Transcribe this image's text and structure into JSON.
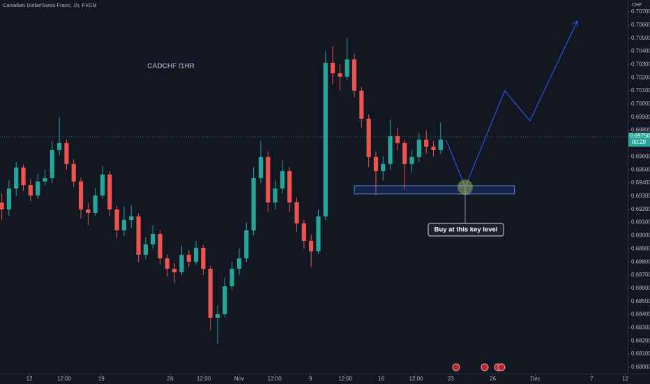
{
  "chart_data": {
    "type": "candlestick",
    "title": "Canadian Dollar/Swiss Franc, 1h, FXCM",
    "annotation": "CADCHF /1HR",
    "callout": "Buy at this key level",
    "y_unit": "CHF",
    "up_color": "#26a69a",
    "down_color": "#ef5350",
    "x": [
      -46,
      -34,
      -22,
      -10,
      2,
      14,
      26,
      38,
      50,
      62,
      74,
      86,
      98,
      110,
      122,
      134,
      146,
      158,
      170,
      182,
      194,
      206,
      218,
      230,
      242,
      254,
      266,
      278,
      290,
      302,
      314,
      326,
      338,
      350,
      362,
      374,
      386,
      398,
      410,
      422,
      434,
      446,
      458,
      470,
      482,
      494,
      506,
      518,
      530,
      542,
      554,
      566,
      578,
      590,
      602,
      614,
      626,
      638,
      650,
      662,
      674,
      686
    ],
    "open": [
      0.6925,
      0.69199,
      0.69358,
      0.69517,
      0.69384,
      0.69305,
      0.69411,
      0.69437,
      0.6965,
      0.69703,
      0.69544,
      0.69411,
      0.69199,
      0.69172,
      0.69305,
      0.69464,
      0.69199,
      0.6904,
      0.69119,
      0.69146,
      0.68854,
      0.68933,
      0.69013,
      0.68827,
      0.68748,
      0.68721,
      0.68854,
      0.68801,
      0.68907,
      0.68748,
      0.68376,
      0.68403,
      0.68615,
      0.68748,
      0.68827,
      0.6904,
      0.69437,
      0.69597,
      0.69252,
      0.69358,
      0.6949,
      0.69252,
      0.69093,
      0.6896,
      0.6888,
      0.69146,
      0.70313,
      0.70233,
      0.70207,
      0.70339,
      0.70101,
      0.69888,
      0.69597,
      0.6949,
      0.69544,
      0.69756,
      0.69703,
      0.69544,
      0.69597,
      0.69729,
      0.69676,
      0.6965
    ],
    "high": [
      0.6932,
      0.6942,
      0.6956,
      0.6954,
      0.6943,
      0.6947,
      0.695,
      0.6972,
      0.699,
      0.6973,
      0.6958,
      0.6944,
      0.6925,
      0.6936,
      0.6953,
      0.6949,
      0.6923,
      0.6922,
      0.6923,
      0.6917,
      0.6899,
      0.6908,
      0.6904,
      0.6886,
      0.6879,
      0.6892,
      0.6889,
      0.6896,
      0.6893,
      0.6877,
      0.6847,
      0.6868,
      0.688,
      0.689,
      0.691,
      0.6952,
      0.6972,
      0.6964,
      0.6942,
      0.6957,
      0.6952,
      0.6929,
      0.6912,
      0.6901,
      0.692,
      0.704,
      0.7044,
      0.703,
      0.705,
      0.7038,
      0.7013,
      0.6992,
      0.6964,
      0.696,
      0.6988,
      0.6982,
      0.6973,
      0.6965,
      0.6978,
      0.698,
      0.6972,
      0.6986
    ],
    "low": [
      0.6912,
      0.6915,
      0.693,
      0.6934,
      0.6926,
      0.6928,
      0.6938,
      0.694,
      0.6961,
      0.695,
      0.6937,
      0.6913,
      0.6908,
      0.6915,
      0.6928,
      0.6915,
      0.6898,
      0.69,
      0.6906,
      0.688,
      0.6882,
      0.689,
      0.6878,
      0.6869,
      0.6864,
      0.687,
      0.6876,
      0.6878,
      0.687,
      0.6828,
      0.6818,
      0.6838,
      0.6859,
      0.687,
      0.688,
      0.69,
      0.694,
      0.6918,
      0.692,
      0.6932,
      0.6918,
      0.6903,
      0.689,
      0.6876,
      0.6886,
      0.6912,
      0.7015,
      0.701,
      0.7018,
      0.7005,
      0.6982,
      0.6952,
      0.6931,
      0.6942,
      0.695,
      0.6965,
      0.6935,
      0.6948,
      0.6956,
      0.6962,
      0.696,
      0.6962
    ],
    "close": [
      0.69199,
      0.69358,
      0.69517,
      0.69384,
      0.69305,
      0.69411,
      0.69437,
      0.6965,
      0.69703,
      0.69544,
      0.69411,
      0.69199,
      0.69172,
      0.69305,
      0.69464,
      0.69199,
      0.6904,
      0.69119,
      0.69146,
      0.68854,
      0.68933,
      0.69013,
      0.68827,
      0.68748,
      0.68721,
      0.68854,
      0.68801,
      0.68907,
      0.68748,
      0.68376,
      0.68403,
      0.68615,
      0.68748,
      0.68827,
      0.6904,
      0.69437,
      0.69597,
      0.69252,
      0.69358,
      0.6949,
      0.69252,
      0.69093,
      0.6896,
      0.6888,
      0.69146,
      0.70313,
      0.70233,
      0.70207,
      0.70339,
      0.70101,
      0.69888,
      0.69597,
      0.6949,
      0.69544,
      0.69756,
      0.69703,
      0.69544,
      0.69597,
      0.69729,
      0.69676,
      0.6965,
      0.69729
    ],
    "current_price": {
      "value": 0.6975,
      "label": "0.69750"
    },
    "countdown": "00:29",
    "zone": {
      "x": [
        542,
        809
      ],
      "y": [
        0.69316,
        0.69379
      ]
    },
    "projection": {
      "x": [
        695,
        727,
        793,
        835,
        914
      ],
      "y": [
        0.69729,
        0.69368,
        0.70101,
        0.69872,
        0.70631
      ]
    },
    "xlim": [
      -49,
      998
    ],
    "ylim": [
      0.67952,
      0.7079
    ],
    "xticks": [
      {
        "value": 0,
        "label": "12"
      },
      {
        "value": 58,
        "label": "12:00"
      },
      {
        "value": 120,
        "label": "19"
      },
      {
        "value": 235,
        "label": "26"
      },
      {
        "value": 291,
        "label": "12:00"
      },
      {
        "value": 350,
        "label": "Nov"
      },
      {
        "value": 409,
        "label": "12:00"
      },
      {
        "value": 469,
        "label": "9"
      },
      {
        "value": 527,
        "label": "12:00"
      },
      {
        "value": 587,
        "label": "16"
      },
      {
        "value": 645,
        "label": "12:00"
      },
      {
        "value": 703,
        "label": "23"
      },
      {
        "value": 773,
        "label": "26"
      },
      {
        "value": 844,
        "label": "Dec"
      },
      {
        "value": 938,
        "label": "7"
      },
      {
        "value": 994,
        "label": "12"
      }
    ],
    "yticks": [
      {
        "value": 0.68,
        "label": "0.68000"
      },
      {
        "value": 0.681,
        "label": "0.68100"
      },
      {
        "value": 0.682,
        "label": "0.68200"
      },
      {
        "value": 0.683,
        "label": "0.68300"
      },
      {
        "value": 0.684,
        "label": "0.68400"
      },
      {
        "value": 0.685,
        "label": "0.68500"
      },
      {
        "value": 0.686,
        "label": "0.68600"
      },
      {
        "value": 0.687,
        "label": "0.68700"
      },
      {
        "value": 0.688,
        "label": "0.68800"
      },
      {
        "value": 0.689,
        "label": "0.68900"
      },
      {
        "value": 0.69,
        "label": "0.69000"
      },
      {
        "value": 0.691,
        "label": "0.69100"
      },
      {
        "value": 0.692,
        "label": "0.69200"
      },
      {
        "value": 0.693,
        "label": "0.69300"
      },
      {
        "value": 0.694,
        "label": "0.69400"
      },
      {
        "value": 0.695,
        "label": "0.69500"
      },
      {
        "value": 0.696,
        "label": "0.69600"
      },
      {
        "value": 0.698,
        "label": "0.69800"
      },
      {
        "value": 0.699,
        "label": "0.69900"
      },
      {
        "value": 0.7,
        "label": "0.70000"
      },
      {
        "value": 0.701,
        "label": "0.70100"
      },
      {
        "value": 0.702,
        "label": "0.70200"
      },
      {
        "value": 0.703,
        "label": "0.70300"
      },
      {
        "value": 0.704,
        "label": "0.70400"
      },
      {
        "value": 0.705,
        "label": "0.70500"
      },
      {
        "value": 0.706,
        "label": "0.70600"
      },
      {
        "value": 0.707,
        "label": "0.70700"
      }
    ],
    "grid": false
  }
}
